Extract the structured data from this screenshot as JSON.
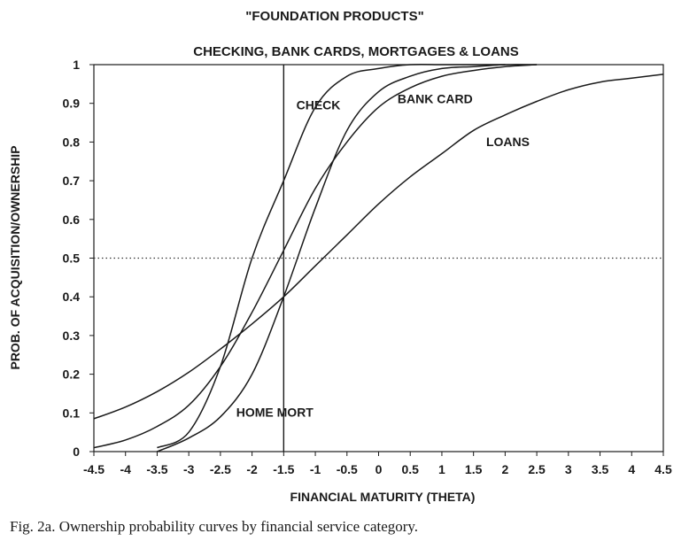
{
  "chart_data": {
    "type": "line",
    "title": "\"FOUNDATION PRODUCTS\"",
    "subtitle": "CHECKING, BANK CARDS, MORTGAGES & LOANS",
    "xlabel": "FINANCIAL MATURITY (THETA)",
    "ylabel": "PROB. OF ACQUISITION/OWNERSHIP",
    "xlim": [
      -4.5,
      4.5
    ],
    "ylim": [
      0,
      1
    ],
    "x_ticks": [
      -4.5,
      -4,
      -3.5,
      -3,
      -2.5,
      -2,
      -1.5,
      -1,
      -0.5,
      0,
      0.5,
      1,
      1.5,
      2,
      2.5,
      3,
      3.5,
      4,
      4.5
    ],
    "x_tick_labels": [
      "-4.5",
      "-4",
      "-3.5",
      "-3",
      "-2.5",
      "-2",
      "-1.5",
      "-1",
      "-0.5",
      "0",
      "0.5",
      "1",
      "1.5",
      "2",
      "2.5",
      "3",
      "3.5",
      "4",
      "4.5"
    ],
    "y_ticks": [
      0,
      0.1,
      0.2,
      0.3,
      0.4,
      0.5,
      0.6,
      0.7,
      0.8,
      0.9,
      1
    ],
    "y_tick_labels": [
      "0",
      "0.1",
      "0.2",
      "0.3",
      "0.4",
      "0.5",
      "0.6",
      "0.7",
      "0.8",
      "0.9",
      "1"
    ],
    "reference_lines": {
      "vertical_x": -1.5,
      "horizontal_y": 0.5
    },
    "series": [
      {
        "name": "CHECK",
        "x": [
          -3.5,
          -3,
          -2.5,
          -2,
          -1.5,
          -1,
          -0.5,
          0,
          0.5,
          1,
          1.5,
          2
        ],
        "y": [
          0.01,
          0.05,
          0.22,
          0.5,
          0.7,
          0.89,
          0.97,
          0.99,
          1.0,
          1.0,
          1.0,
          1.0
        ]
      },
      {
        "name": "BANK CARD",
        "x": [
          -4.5,
          -4,
          -3.5,
          -3,
          -2.5,
          -2,
          -1.5,
          -1,
          -0.5,
          0,
          0.5,
          1,
          1.5,
          2,
          2.5
        ],
        "y": [
          0.01,
          0.03,
          0.065,
          0.12,
          0.22,
          0.36,
          0.52,
          0.68,
          0.8,
          0.89,
          0.94,
          0.97,
          0.985,
          0.995,
          1.0
        ]
      },
      {
        "name": "LOANS",
        "x": [
          -4.5,
          -4,
          -3.5,
          -3,
          -2.5,
          -2,
          -1.5,
          -1,
          -0.5,
          0,
          0.5,
          1,
          1.5,
          2,
          2.5,
          3,
          3.5,
          4,
          4.5
        ],
        "y": [
          0.085,
          0.115,
          0.155,
          0.205,
          0.265,
          0.33,
          0.4,
          0.48,
          0.56,
          0.64,
          0.71,
          0.77,
          0.83,
          0.87,
          0.905,
          0.935,
          0.955,
          0.965,
          0.975
        ]
      },
      {
        "name": "HOME MORT",
        "x": [
          -3.5,
          -3,
          -2.5,
          -2,
          -1.5,
          -1,
          -0.5,
          0,
          0.5,
          1,
          1.5,
          2,
          2.5
        ],
        "y": [
          0.0,
          0.035,
          0.09,
          0.2,
          0.4,
          0.63,
          0.83,
          0.93,
          0.97,
          0.99,
          0.995,
          1.0,
          1.0
        ]
      }
    ]
  },
  "caption": "Fig. 2a. Ownership probability curves by financial service category."
}
